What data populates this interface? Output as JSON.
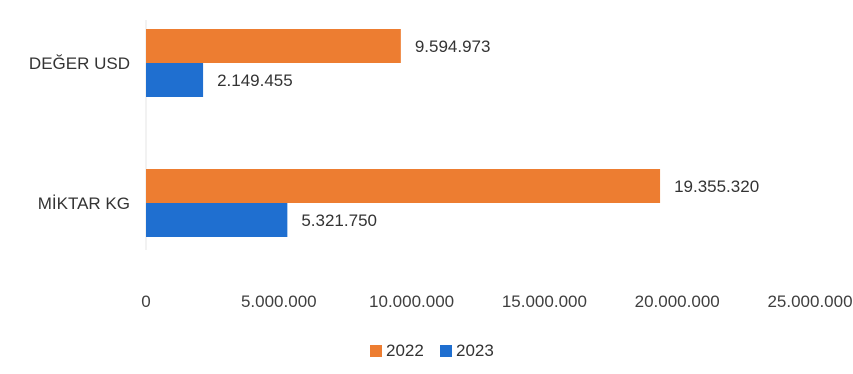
{
  "chart_data": {
    "type": "bar",
    "orientation": "horizontal",
    "categories": [
      "DEĞER USD",
      "MİKTAR KG"
    ],
    "series": [
      {
        "name": "2022",
        "values": [
          9594973,
          19355320
        ],
        "labels": [
          "9.594.973",
          "19.355.320"
        ],
        "color": "#ED7D31"
      },
      {
        "name": "2023",
        "values": [
          2149455,
          5321750
        ],
        "labels": [
          "2.149.455",
          "5.321.750"
        ],
        "color": "#1F6FD0"
      }
    ],
    "xlim": [
      0,
      25000000
    ],
    "x_ticks": [
      0,
      5000000,
      10000000,
      15000000,
      20000000,
      25000000
    ],
    "x_tick_labels": [
      "0",
      "5.000.000",
      "10.000.000",
      "15.000.000",
      "20.000.000",
      "25.000.000"
    ],
    "title": "",
    "xlabel": "",
    "ylabel": "",
    "grid": false,
    "legend": "bottom"
  }
}
